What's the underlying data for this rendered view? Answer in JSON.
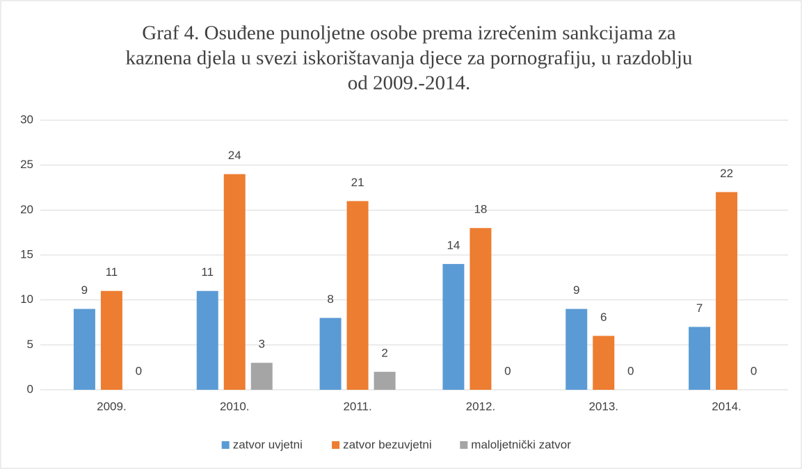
{
  "chart_data": {
    "type": "bar",
    "title": [
      "Graf 4. Osuđene punoljetne osobe prema izrečenim sankcijama za",
      "kaznena djela u svezi iskorištavanja djece za pornografiju, u razdoblju",
      "od 2009.-2014."
    ],
    "categories": [
      "2009.",
      "2010.",
      "2011.",
      "2012.",
      "2013.",
      "2014."
    ],
    "series": [
      {
        "name": "zatvor uvjetni",
        "color": "#5b9bd5",
        "values": [
          9,
          11,
          8,
          14,
          9,
          7
        ]
      },
      {
        "name": "zatvor bezuvjetni",
        "color": "#ed7d31",
        "values": [
          11,
          24,
          21,
          18,
          6,
          22
        ]
      },
      {
        "name": "maloljetnički zatvor",
        "color": "#a5a5a5",
        "values": [
          0,
          3,
          2,
          0,
          0,
          0
        ]
      }
    ],
    "ylim": [
      0,
      30
    ],
    "yticks": [
      0,
      5,
      10,
      15,
      20,
      25,
      30
    ],
    "grid": true,
    "legend": "bottom"
  }
}
